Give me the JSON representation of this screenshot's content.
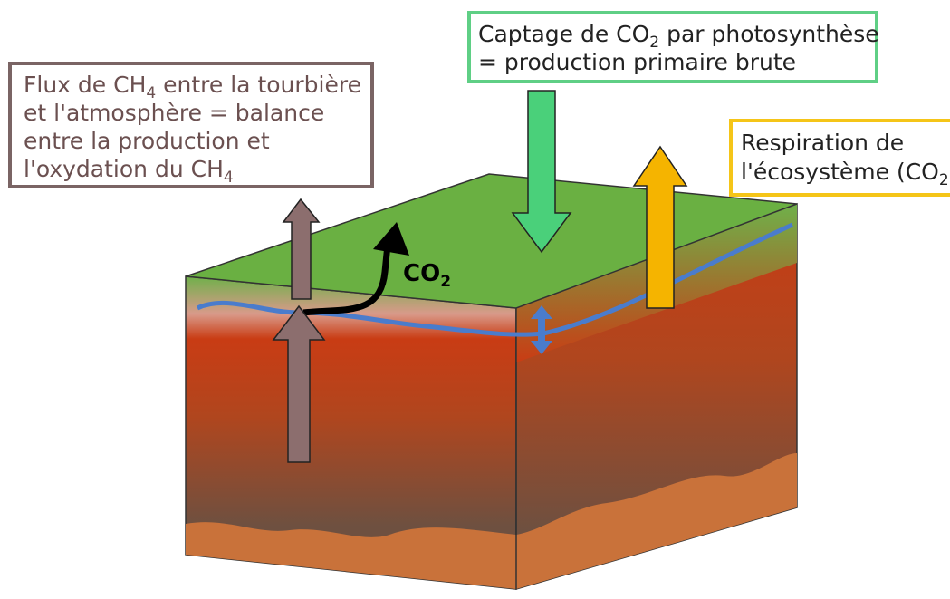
{
  "labels": [
    {
      "lines": [
        [
          "Flux de CH",
          "4",
          " entre la tourbière"
        ],
        [
          "et l'atmosphère = balance"
        ],
        [
          "entre la production et"
        ],
        [
          "l'oxydation du CH",
          "4",
          ""
        ]
      ]
    },
    {
      "lines": [
        [
          "Captage de CO",
          "2",
          " par photosynthèse"
        ],
        [
          "= production primaire brute"
        ]
      ]
    },
    {
      "lines": [
        [
          "Respiration de"
        ],
        [
          "l'écosystème (CO",
          "2",
          ")"
        ]
      ]
    }
  ],
  "co2_label": [
    "CO",
    "2"
  ]
}
